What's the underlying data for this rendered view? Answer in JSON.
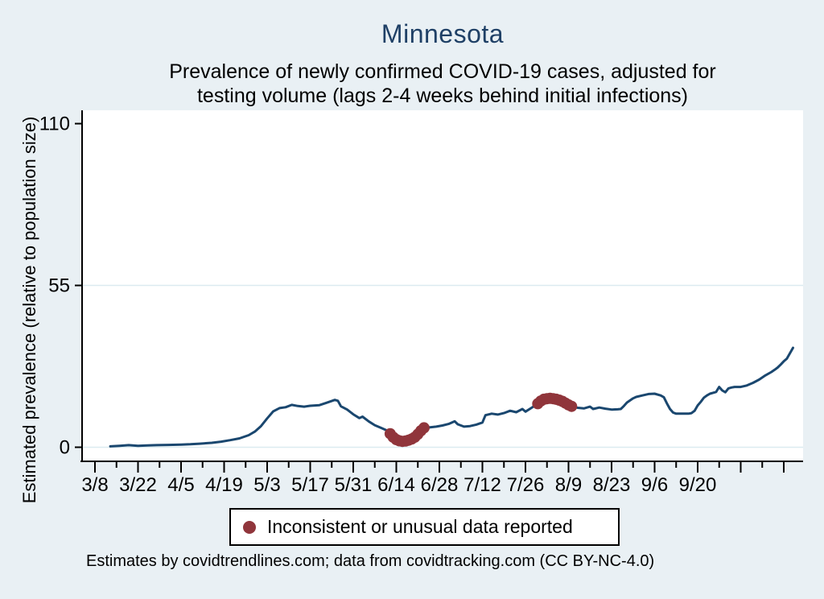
{
  "title": {
    "text": "Minnesota",
    "color": "#1f4066"
  },
  "subtitle": {
    "line1": "Prevalence of newly confirmed COVID-19 cases, adjusted for",
    "line2": "testing volume (lags 2-4 weeks behind initial infections)"
  },
  "y_axis": {
    "title": "Estimated prevalence (relative to population size)",
    "ticks": [
      {
        "label": "0",
        "value": 0
      },
      {
        "label": "55",
        "value": 55
      },
      {
        "label": "110",
        "value": 110
      }
    ]
  },
  "x_axis": {
    "tick_labels": [
      {
        "label": "3/8",
        "day": 0
      },
      {
        "label": "3/22",
        "day": 14
      },
      {
        "label": "4/5",
        "day": 28
      },
      {
        "label": "4/19",
        "day": 42
      },
      {
        "label": "5/3",
        "day": 56
      },
      {
        "label": "5/17",
        "day": 70
      },
      {
        "label": "5/31",
        "day": 84
      },
      {
        "label": "6/14",
        "day": 98
      },
      {
        "label": "6/28",
        "day": 112
      },
      {
        "label": "7/12",
        "day": 126
      },
      {
        "label": "7/26",
        "day": 140
      },
      {
        "label": "8/9",
        "day": 154
      },
      {
        "label": "8/23",
        "day": 168
      },
      {
        "label": "9/6",
        "day": 182
      },
      {
        "label": "9/20",
        "day": 196
      }
    ],
    "minor_step_days": 7,
    "last_tick_day": 224
  },
  "legend": {
    "marker_color": "#90353b",
    "label": "Inconsistent or unusual data reported"
  },
  "footer": {
    "text": "Estimates by covidtrendlines.com; data from covidtracking.com (CC BY-NC-4.0)"
  },
  "chart_data": {
    "type": "line",
    "title": "Minnesota",
    "subtitle": "Prevalence of newly confirmed COVID-19 cases, adjusted for testing volume (lags 2-4 weeks behind initial infections)",
    "ylabel": "Estimated prevalence (relative to population size)",
    "ylim": [
      0,
      110
    ],
    "yticks": [
      0,
      55,
      110
    ],
    "grid": "horizontal gridlines at y=0 and y=55",
    "legend_position": "bottom",
    "x_unit": "days since 3/8 (2020); labeled ticks every 14 days, minor ticks weekly",
    "xtick_labels": [
      "3/8",
      "3/22",
      "4/5",
      "4/19",
      "5/3",
      "5/17",
      "5/31",
      "6/14",
      "6/28",
      "7/12",
      "7/26",
      "8/9",
      "8/23",
      "9/6",
      "9/20"
    ],
    "series": [
      {
        "name": "estimated-prevalence",
        "color": "#1a476f",
        "points": [
          [
            5,
            0.3
          ],
          [
            8,
            0.5
          ],
          [
            11,
            0.7
          ],
          [
            14,
            0.5
          ],
          [
            17,
            0.6
          ],
          [
            20,
            0.7
          ],
          [
            24,
            0.8
          ],
          [
            28,
            0.9
          ],
          [
            31,
            1.0
          ],
          [
            34,
            1.2
          ],
          [
            38,
            1.5
          ],
          [
            41,
            1.9
          ],
          [
            44,
            2.4
          ],
          [
            47,
            3.0
          ],
          [
            50,
            4.1
          ],
          [
            52,
            5.3
          ],
          [
            54,
            7.2
          ],
          [
            56,
            9.8
          ],
          [
            58,
            12.2
          ],
          [
            60,
            13.3
          ],
          [
            62,
            13.6
          ],
          [
            64,
            14.4
          ],
          [
            66,
            14.0
          ],
          [
            68,
            13.8
          ],
          [
            70,
            14.1
          ],
          [
            73,
            14.3
          ],
          [
            75,
            15.0
          ],
          [
            77,
            15.7
          ],
          [
            78,
            16.1
          ],
          [
            79,
            15.8
          ],
          [
            80,
            13.9
          ],
          [
            82,
            12.8
          ],
          [
            84,
            11.2
          ],
          [
            86,
            9.9
          ],
          [
            87,
            10.4
          ],
          [
            89,
            8.8
          ],
          [
            91,
            7.5
          ],
          [
            93,
            6.6
          ],
          [
            95,
            5.7
          ],
          [
            96,
            4.6
          ],
          [
            97,
            3.4
          ],
          [
            98,
            2.6
          ],
          [
            99,
            2.2
          ],
          [
            100,
            2.0
          ],
          [
            101,
            2.1
          ],
          [
            102,
            2.4
          ],
          [
            103,
            2.8
          ],
          [
            104,
            3.4
          ],
          [
            105,
            4.4
          ],
          [
            106,
            5.6
          ],
          [
            107,
            6.6
          ],
          [
            109,
            6.8
          ],
          [
            111,
            7.0
          ],
          [
            113,
            7.4
          ],
          [
            115,
            7.9
          ],
          [
            117,
            8.8
          ],
          [
            118,
            7.8
          ],
          [
            120,
            7.0
          ],
          [
            122,
            7.2
          ],
          [
            124,
            7.7
          ],
          [
            126,
            8.4
          ],
          [
            127,
            10.9
          ],
          [
            129,
            11.4
          ],
          [
            131,
            11.1
          ],
          [
            133,
            11.6
          ],
          [
            135,
            12.4
          ],
          [
            137,
            11.9
          ],
          [
            139,
            13.0
          ],
          [
            140,
            12.1
          ],
          [
            142,
            13.4
          ],
          [
            144,
            14.8
          ],
          [
            145,
            15.7
          ],
          [
            146,
            16.3
          ],
          [
            147,
            16.5
          ],
          [
            148,
            16.6
          ],
          [
            149,
            16.5
          ],
          [
            150,
            16.3
          ],
          [
            151,
            16.0
          ],
          [
            152,
            15.6
          ],
          [
            153,
            15.0
          ],
          [
            154,
            14.4
          ],
          [
            155,
            13.9
          ],
          [
            156,
            13.6
          ],
          [
            157,
            13.4
          ],
          [
            159,
            13.2
          ],
          [
            161,
            13.8
          ],
          [
            162,
            13.0
          ],
          [
            164,
            13.5
          ],
          [
            166,
            13.1
          ],
          [
            168,
            12.8
          ],
          [
            170,
            12.9
          ],
          [
            171,
            13.0
          ],
          [
            172,
            14.0
          ],
          [
            173,
            15.2
          ],
          [
            175,
            16.6
          ],
          [
            176,
            17.1
          ],
          [
            178,
            17.6
          ],
          [
            180,
            18.1
          ],
          [
            182,
            18.2
          ],
          [
            184,
            17.6
          ],
          [
            185,
            17.0
          ],
          [
            186,
            14.9
          ],
          [
            187,
            13.0
          ],
          [
            188,
            11.8
          ],
          [
            189,
            11.4
          ],
          [
            191,
            11.4
          ],
          [
            193,
            11.4
          ],
          [
            194,
            11.6
          ],
          [
            195,
            12.4
          ],
          [
            196,
            14.2
          ],
          [
            197,
            15.4
          ],
          [
            198,
            16.8
          ],
          [
            199,
            17.6
          ],
          [
            200,
            18.2
          ],
          [
            201,
            18.5
          ],
          [
            202,
            18.8
          ],
          [
            203,
            20.5
          ],
          [
            204,
            19.3
          ],
          [
            205,
            18.7
          ],
          [
            206,
            20.0
          ],
          [
            207,
            20.3
          ],
          [
            208,
            20.5
          ],
          [
            210,
            20.5
          ],
          [
            212,
            21.0
          ],
          [
            214,
            21.9
          ],
          [
            216,
            23.0
          ],
          [
            218,
            24.4
          ],
          [
            220,
            25.6
          ],
          [
            221,
            26.3
          ],
          [
            222,
            27.1
          ],
          [
            223,
            28.1
          ],
          [
            224,
            29.2
          ],
          [
            225,
            30.1
          ],
          [
            226,
            31.9
          ],
          [
            227,
            33.8
          ]
        ]
      }
    ],
    "flagged": {
      "label": "Inconsistent or unusual data reported",
      "color": "#90353b",
      "segments": [
        [
          [
            96,
            4.6
          ],
          [
            97,
            3.4
          ],
          [
            98,
            2.6
          ],
          [
            99,
            2.2
          ],
          [
            100,
            2.0
          ],
          [
            101,
            2.1
          ],
          [
            102,
            2.4
          ],
          [
            103,
            2.8
          ],
          [
            104,
            3.4
          ],
          [
            105,
            4.4
          ],
          [
            106,
            5.6
          ],
          [
            107,
            6.6
          ]
        ],
        [
          [
            144,
            14.8
          ],
          [
            145,
            15.7
          ],
          [
            146,
            16.3
          ],
          [
            147,
            16.5
          ],
          [
            148,
            16.6
          ],
          [
            149,
            16.5
          ],
          [
            150,
            16.3
          ],
          [
            151,
            16.0
          ],
          [
            152,
            15.6
          ],
          [
            153,
            15.0
          ],
          [
            154,
            14.4
          ],
          [
            155,
            13.9
          ]
        ]
      ]
    }
  }
}
